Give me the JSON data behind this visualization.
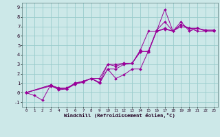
{
  "xlabel": "Windchill (Refroidissement éolien,°C)",
  "bg_color": "#cce8e8",
  "line_color": "#990099",
  "grid_color": "#99cccc",
  "xlim": [
    -0.5,
    23.5
  ],
  "ylim": [
    -1.5,
    9.5
  ],
  "xticks": [
    0,
    1,
    2,
    3,
    4,
    5,
    6,
    7,
    8,
    9,
    10,
    11,
    12,
    13,
    14,
    15,
    16,
    17,
    18,
    19,
    20,
    21,
    22,
    23
  ],
  "yticks": [
    -1,
    0,
    1,
    2,
    3,
    4,
    5,
    6,
    7,
    8,
    9
  ],
  "series": [
    {
      "x": [
        0,
        1,
        2,
        3,
        4,
        5,
        6,
        7,
        8,
        9,
        10,
        11,
        12,
        13,
        14,
        15,
        16,
        17,
        18,
        19,
        20,
        21,
        22,
        23
      ],
      "y": [
        0,
        -0.3,
        -0.8,
        0.8,
        0.5,
        0.5,
        1.0,
        1.2,
        1.5,
        1.5,
        3.0,
        3.0,
        3.1,
        3.1,
        4.5,
        6.5,
        6.5,
        8.8,
        6.5,
        7.5,
        6.5,
        6.8,
        6.5,
        6.5
      ]
    },
    {
      "x": [
        0,
        3,
        4,
        5,
        6,
        7,
        8,
        9,
        10,
        11,
        12,
        13,
        14,
        15,
        16,
        17,
        18,
        19,
        20,
        21,
        22,
        23
      ],
      "y": [
        0,
        0.7,
        0.4,
        0.4,
        0.9,
        1.2,
        1.5,
        1.0,
        2.5,
        1.5,
        1.9,
        2.5,
        2.5,
        4.4,
        6.6,
        7.5,
        6.5,
        7.0,
        6.8,
        6.5,
        6.5,
        6.5
      ]
    },
    {
      "x": [
        0,
        3,
        4,
        5,
        6,
        7,
        8,
        9,
        10,
        11,
        12,
        13,
        14,
        15,
        16,
        17,
        18,
        19,
        20,
        21,
        22,
        23
      ],
      "y": [
        0,
        0.8,
        0.4,
        0.5,
        0.9,
        1.1,
        1.5,
        1.0,
        2.5,
        2.5,
        3.0,
        3.1,
        4.3,
        4.4,
        6.5,
        6.7,
        6.5,
        7.2,
        6.8,
        6.8,
        6.6,
        6.6
      ]
    },
    {
      "x": [
        0,
        3,
        4,
        5,
        6,
        7,
        8,
        9,
        10,
        11,
        12,
        13,
        14,
        15,
        16,
        17,
        18,
        19,
        20,
        21,
        22,
        23
      ],
      "y": [
        0,
        0.8,
        0.3,
        0.4,
        1.0,
        1.2,
        1.5,
        1.1,
        3.0,
        2.8,
        3.1,
        3.1,
        4.4,
        4.3,
        6.5,
        6.8,
        6.5,
        7.2,
        6.8,
        6.8,
        6.6,
        6.6
      ]
    }
  ]
}
